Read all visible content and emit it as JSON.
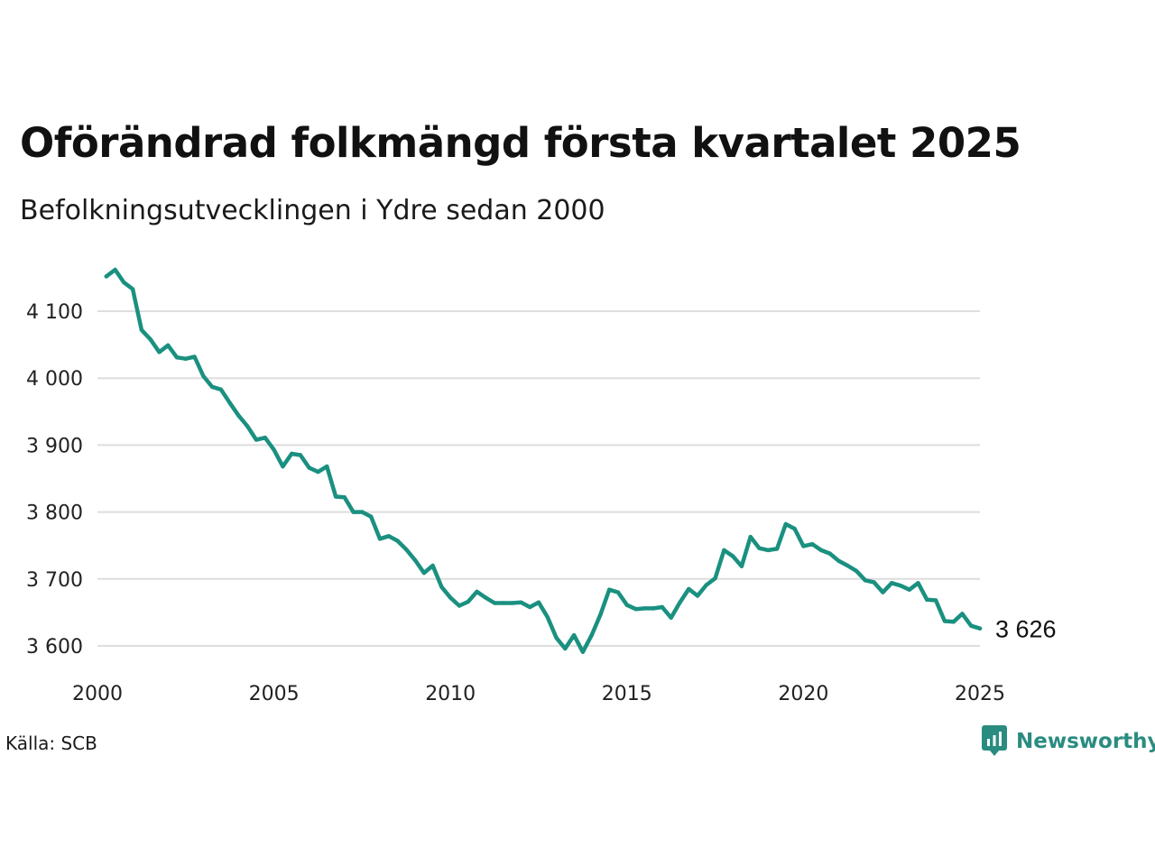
{
  "title": "Oförändrad folkmängd första kvartalet 2025",
  "subtitle": "Befolkningsutvecklingen i Ydre sedan 2000",
  "source": "Källa: SCB",
  "brand": {
    "name": "Newsworthy",
    "icon": "newsworthy-logo-icon",
    "color": "#2a8c80"
  },
  "chart_data": {
    "type": "line",
    "color": "#1a9080",
    "xlim": [
      2000,
      2025
    ],
    "ylim": [
      3560,
      4170
    ],
    "grid": true,
    "x_ticks": [
      {
        "value": 2000,
        "label": "2000"
      },
      {
        "value": 2005,
        "label": "2005"
      },
      {
        "value": 2010,
        "label": "2010"
      },
      {
        "value": 2015,
        "label": "2015"
      },
      {
        "value": 2020,
        "label": "2020"
      },
      {
        "value": 2025,
        "label": "2025"
      }
    ],
    "y_ticks": [
      {
        "value": 3600,
        "label": "3 600"
      },
      {
        "value": 3700,
        "label": "3 700"
      },
      {
        "value": 3800,
        "label": "3 800"
      },
      {
        "value": 3900,
        "label": "3 900"
      },
      {
        "value": 4000,
        "label": "4 000"
      },
      {
        "value": 4100,
        "label": "4 100"
      }
    ],
    "end_label": "3 626",
    "series": [
      {
        "x": [
          2000.25,
          2000.5,
          2000.75,
          2001.0,
          2001.25,
          2001.5,
          2001.75,
          2002.0,
          2002.25,
          2002.5,
          2002.75,
          2003.0,
          2003.25,
          2003.5,
          2003.75,
          2004.0,
          2004.25,
          2004.5,
          2004.75,
          2005.0,
          2005.25,
          2005.5,
          2005.75,
          2006.0,
          2006.25,
          2006.5,
          2006.75,
          2007.0,
          2007.25,
          2007.5,
          2007.75,
          2008.0,
          2008.25,
          2008.5,
          2008.75,
          2009.0,
          2009.25,
          2009.5,
          2009.75,
          2010.0,
          2010.25,
          2010.5,
          2010.75,
          2011.0,
          2011.25,
          2011.5,
          2011.75,
          2012.0,
          2012.25,
          2012.5,
          2012.75,
          2013.0,
          2013.25,
          2013.5,
          2013.75,
          2014.0,
          2014.25,
          2014.5,
          2014.75,
          2015.0,
          2015.25,
          2015.5,
          2015.75,
          2016.0,
          2016.25,
          2016.5,
          2016.75,
          2017.0,
          2017.25,
          2017.5,
          2017.75,
          2018.0,
          2018.25,
          2018.5,
          2018.75,
          2019.0,
          2019.25,
          2019.5,
          2019.75,
          2020.0,
          2020.25,
          2020.5,
          2020.75,
          2021.0,
          2021.25,
          2021.5,
          2021.75,
          2022.0,
          2022.25,
          2022.5,
          2022.75,
          2023.0,
          2023.25,
          2023.5,
          2023.75,
          2024.0,
          2024.25,
          2024.5,
          2024.75,
          2025.0
        ],
        "y": [
          4152,
          4162,
          4143,
          4133,
          4072,
          4058,
          4039,
          4049,
          4031,
          4029,
          4032,
          4003,
          3987,
          3983,
          3963,
          3944,
          3928,
          3908,
          3911,
          3893,
          3868,
          3887,
          3885,
          3866,
          3860,
          3868,
          3823,
          3822,
          3800,
          3800,
          3793,
          3760,
          3764,
          3757,
          3744,
          3728,
          3709,
          3720,
          3688,
          3672,
          3660,
          3666,
          3681,
          3672,
          3664,
          3664,
          3664,
          3665,
          3658,
          3665,
          3643,
          3612,
          3596,
          3616,
          3591,
          3616,
          3647,
          3684,
          3680,
          3661,
          3655,
          3656,
          3656,
          3658,
          3642,
          3665,
          3685,
          3675,
          3691,
          3701,
          3743,
          3734,
          3719,
          3763,
          3746,
          3743,
          3745,
          3782,
          3775,
          3749,
          3752,
          3743,
          3738,
          3727,
          3720,
          3712,
          3698,
          3695,
          3680,
          3694,
          3690,
          3684,
          3694,
          3669,
          3668,
          3637,
          3636,
          3648,
          3630,
          3626
        ]
      }
    ]
  }
}
